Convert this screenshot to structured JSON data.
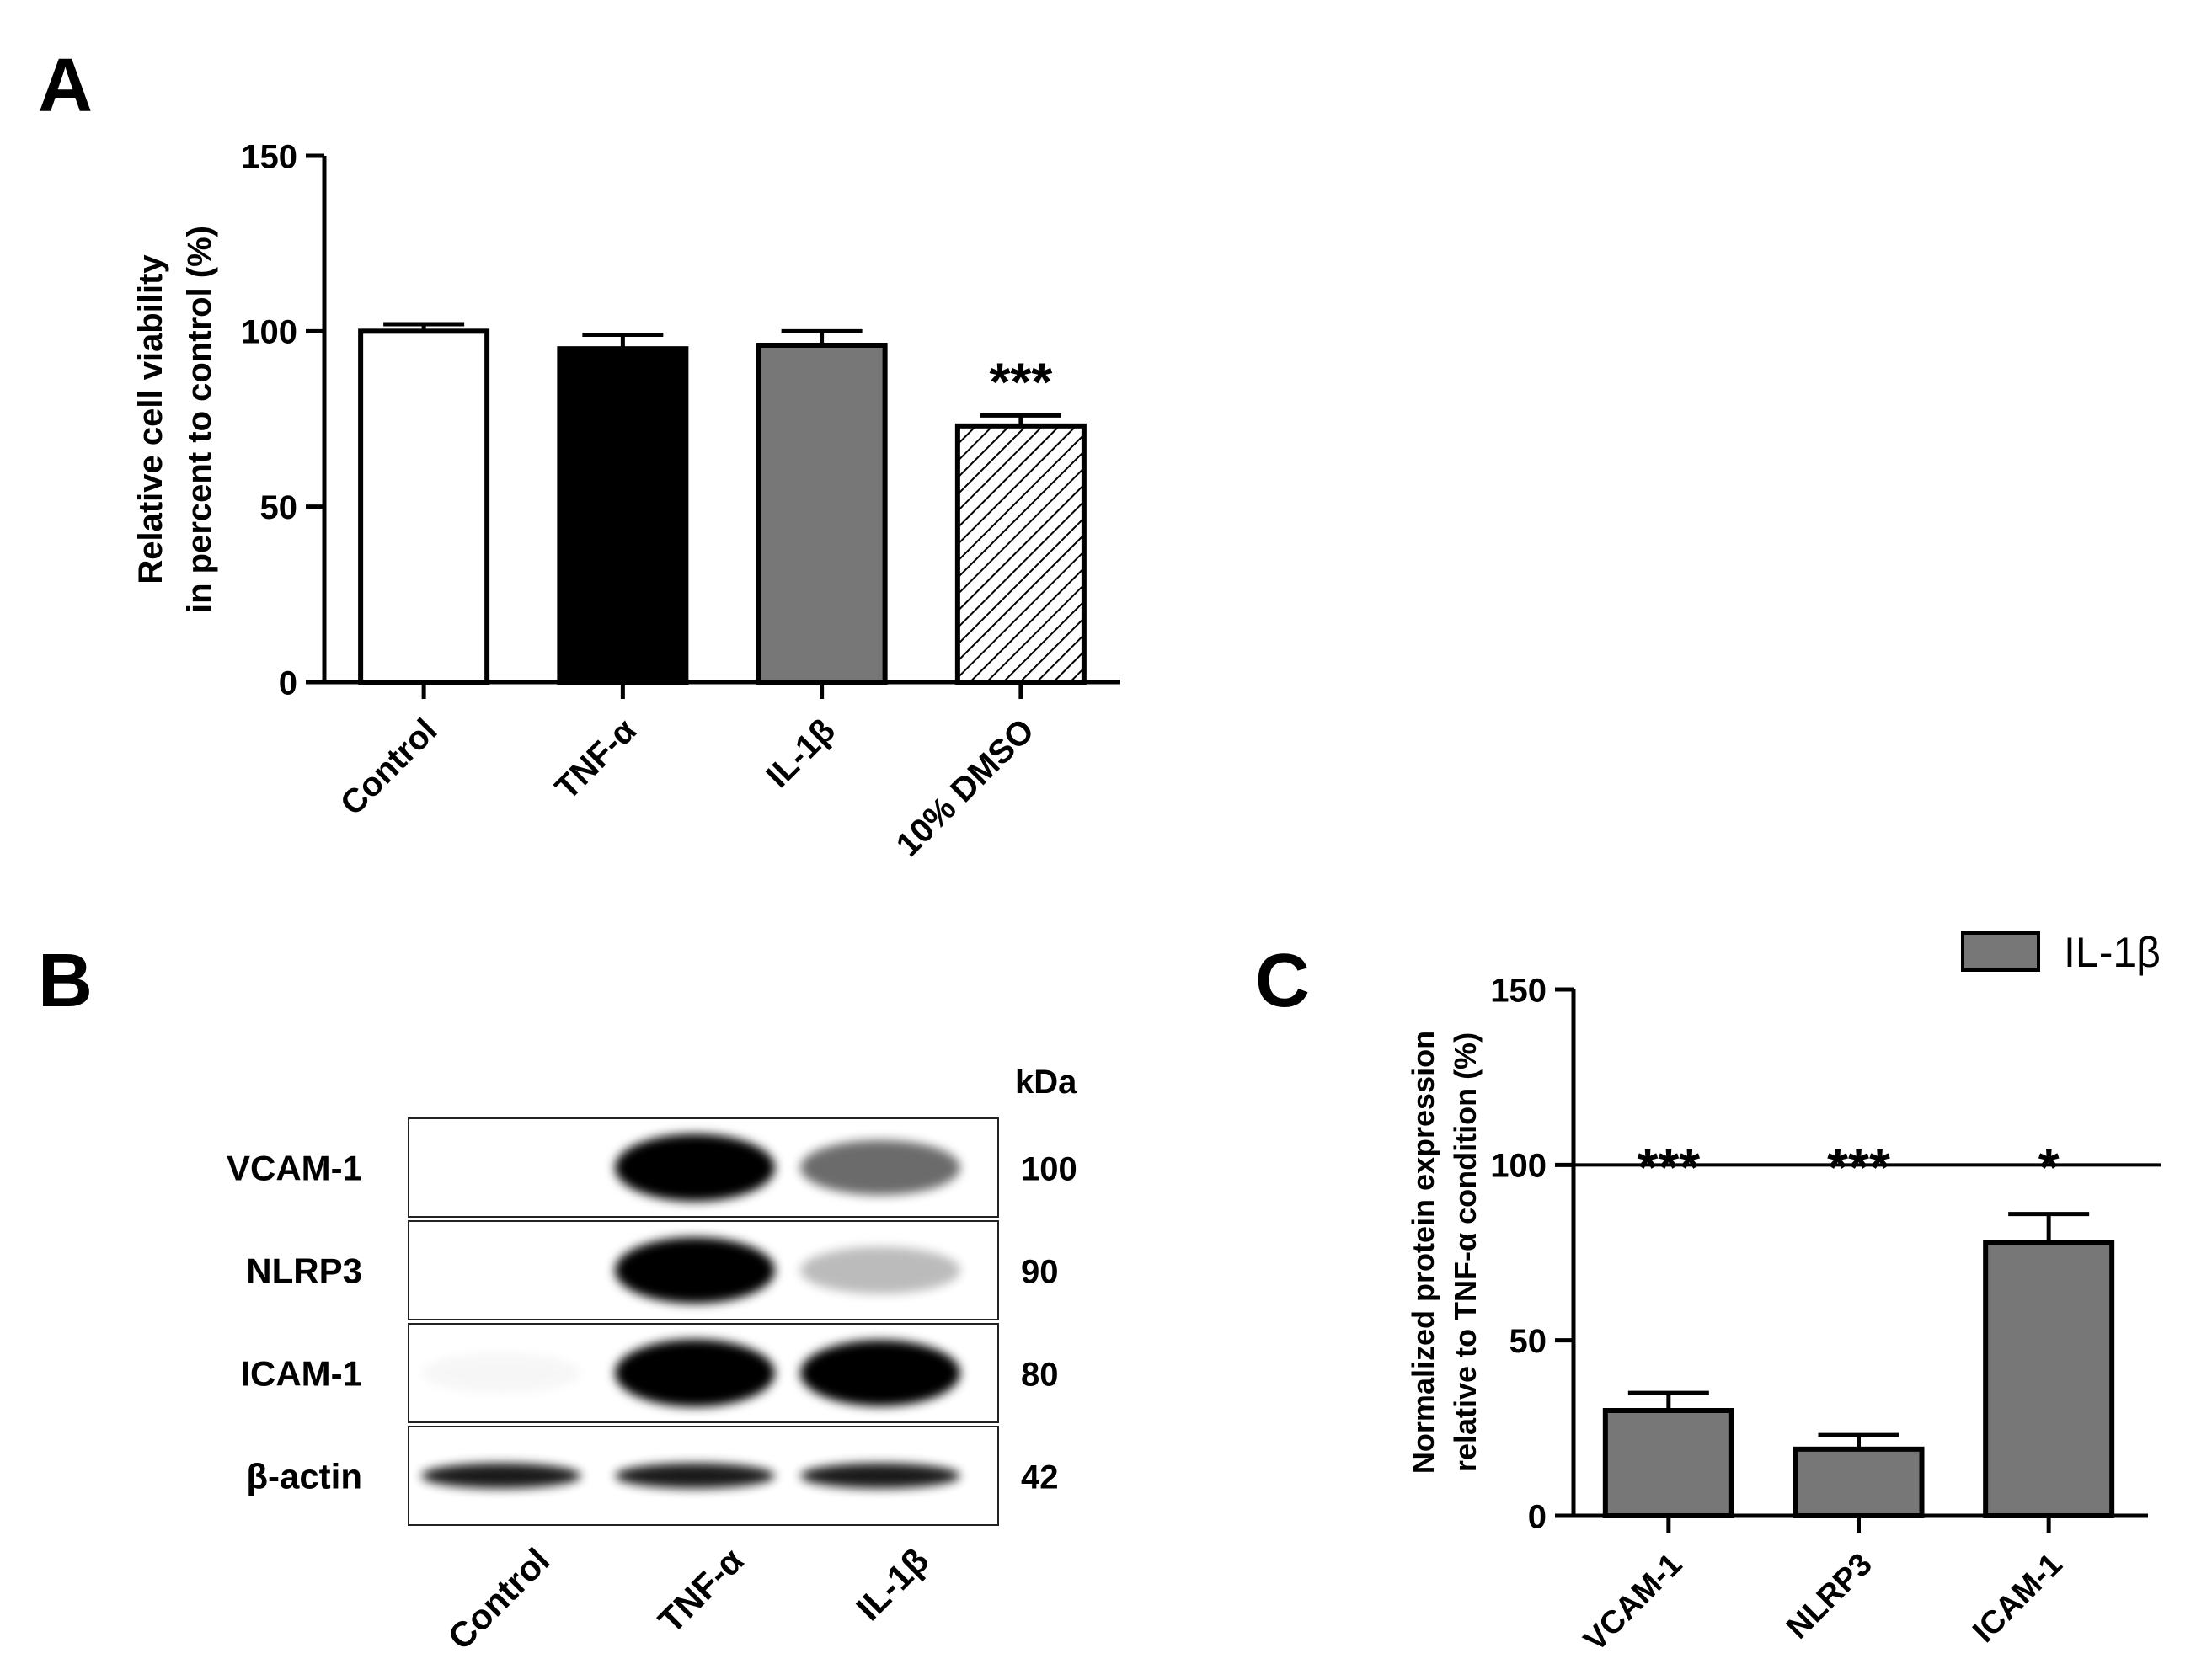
{
  "panel_labels": [
    "A",
    "B",
    "C"
  ],
  "chart_data": [
    {
      "id": "A",
      "type": "bar",
      "ylabel_lines": [
        "Relative cell viability",
        "in percent to control (%)"
      ],
      "ylim": [
        0,
        150
      ],
      "yticks": [
        0,
        50,
        100,
        150
      ],
      "categories": [
        "Control",
        "TNF-α",
        "IL-1β",
        "10% DMSO"
      ],
      "values": [
        100,
        95,
        96,
        73
      ],
      "errors": [
        2,
        4,
        4,
        3
      ],
      "significance": [
        "",
        "",
        "",
        "***"
      ],
      "fills": [
        "#ffffff",
        "#000000",
        "#777777",
        "hatch"
      ]
    },
    {
      "id": "C",
      "type": "bar",
      "ylabel_lines": [
        "Normalized protein expression",
        "relative to TNF-α condition (%)"
      ],
      "ylim": [
        0,
        150
      ],
      "yticks": [
        0,
        50,
        100,
        150
      ],
      "reference_line": 100,
      "categories": [
        "VCAM-1",
        "NLRP3",
        "ICAM-1"
      ],
      "series": [
        {
          "name": "IL-1β",
          "values": [
            30,
            19,
            78
          ],
          "errors": [
            5,
            4,
            8
          ],
          "color": "#777777"
        }
      ],
      "significance": [
        "***",
        "***",
        "*"
      ],
      "legend_position": "top-right"
    }
  ],
  "blot": {
    "unit_label": "kDa",
    "rows": [
      {
        "protein": "VCAM-1",
        "kda": "100",
        "intensities": [
          0.0,
          1.0,
          0.55
        ]
      },
      {
        "protein": "NLRP3",
        "kda": "90",
        "intensities": [
          0.0,
          0.95,
          0.25
        ]
      },
      {
        "protein": "ICAM-1",
        "kda": "80",
        "intensities": [
          0.03,
          1.0,
          0.95
        ]
      },
      {
        "protein": "β-actin",
        "kda": "42",
        "intensities": [
          0.85,
          0.85,
          0.85
        ]
      }
    ],
    "lanes": [
      "Control",
      "TNF-α",
      "IL-1β"
    ]
  }
}
